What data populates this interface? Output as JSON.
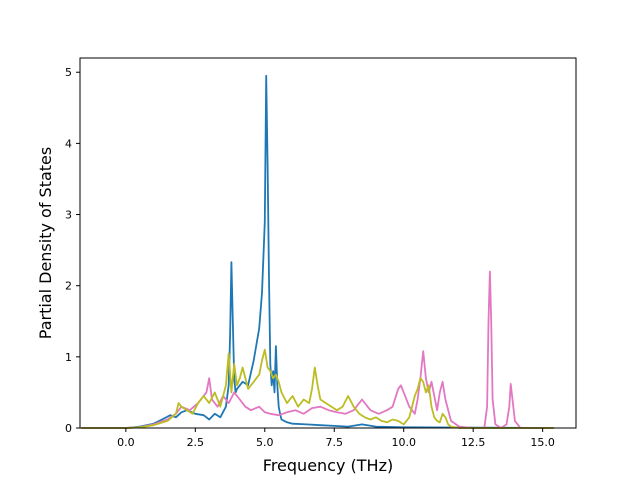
{
  "chart_data": {
    "type": "line",
    "xlabel": "Frequency (THz)",
    "ylabel": "Partial Density of States",
    "xlim": [
      -1.65,
      16.2
    ],
    "ylim": [
      0,
      5.2
    ],
    "xticks": [
      "0.0",
      "2.5",
      "5.0",
      "7.5",
      "10.0",
      "12.5",
      "15.0"
    ],
    "xtick_values": [
      0,
      2.5,
      5,
      7.5,
      10,
      12.5,
      15
    ],
    "yticks": [
      "0",
      "1",
      "2",
      "3",
      "4",
      "5"
    ],
    "ytick_values": [
      0,
      1,
      2,
      3,
      4,
      5
    ],
    "grid": false,
    "series": [
      {
        "color": "#1f77b4",
        "x": [
          -1.6,
          0.0,
          0.5,
          1.0,
          1.3,
          1.6,
          1.8,
          2.0,
          2.2,
          2.5,
          2.8,
          3.0,
          3.2,
          3.4,
          3.6,
          3.7,
          3.75,
          3.8,
          3.85,
          3.9,
          3.95,
          4.0,
          4.2,
          4.4,
          4.6,
          4.8,
          4.9,
          5.0,
          5.05,
          5.1,
          5.15,
          5.2,
          5.25,
          5.3,
          5.35,
          5.4,
          5.45,
          5.5,
          5.55,
          5.6,
          5.8,
          6.0,
          6.5,
          7.0,
          7.5,
          8.0,
          8.5,
          9.0,
          10.0,
          15.4
        ],
        "y": [
          0,
          0,
          0.02,
          0.06,
          0.12,
          0.18,
          0.15,
          0.22,
          0.25,
          0.2,
          0.18,
          0.12,
          0.2,
          0.15,
          0.3,
          0.6,
          1.3,
          2.33,
          1.5,
          0.7,
          0.5,
          0.55,
          0.65,
          0.6,
          0.95,
          1.4,
          1.9,
          2.9,
          4.95,
          3.7,
          2.1,
          0.9,
          0.6,
          0.8,
          0.5,
          1.15,
          0.6,
          0.3,
          0.2,
          0.12,
          0.08,
          0.06,
          0.05,
          0.04,
          0.03,
          0.02,
          0.05,
          0.02,
          0.01,
          0
        ]
      },
      {
        "color": "#e377c2",
        "x": [
          -1.6,
          0.0,
          0.5,
          1.0,
          1.5,
          1.8,
          2.0,
          2.3,
          2.6,
          2.9,
          3.0,
          3.1,
          3.3,
          3.5,
          3.7,
          3.9,
          4.1,
          4.3,
          4.5,
          4.8,
          5.0,
          5.2,
          5.5,
          5.8,
          6.1,
          6.4,
          6.7,
          7.0,
          7.3,
          7.6,
          7.9,
          8.2,
          8.5,
          8.8,
          9.1,
          9.4,
          9.6,
          9.8,
          9.9,
          10.0,
          10.2,
          10.4,
          10.5,
          10.6,
          10.7,
          10.8,
          10.9,
          11.0,
          11.1,
          11.2,
          11.3,
          11.4,
          11.5,
          11.7,
          12.0,
          12.5,
          12.9,
          13.0,
          13.05,
          13.1,
          13.15,
          13.2,
          13.3,
          13.5,
          13.7,
          13.8,
          13.85,
          13.9,
          14.0,
          14.2,
          15.0,
          15.4
        ],
        "y": [
          0,
          0,
          0.01,
          0.05,
          0.12,
          0.2,
          0.3,
          0.25,
          0.35,
          0.5,
          0.7,
          0.4,
          0.3,
          0.45,
          0.35,
          0.5,
          0.4,
          0.3,
          0.25,
          0.3,
          0.22,
          0.2,
          0.18,
          0.22,
          0.25,
          0.2,
          0.28,
          0.3,
          0.25,
          0.22,
          0.2,
          0.25,
          0.4,
          0.25,
          0.2,
          0.25,
          0.3,
          0.55,
          0.6,
          0.5,
          0.3,
          0.2,
          0.4,
          0.7,
          1.08,
          0.7,
          0.5,
          0.65,
          0.45,
          0.25,
          0.5,
          0.65,
          0.4,
          0.1,
          0.02,
          0,
          0,
          0.3,
          1.5,
          2.2,
          1.5,
          0.4,
          0.05,
          0,
          0.05,
          0.3,
          0.62,
          0.45,
          0.1,
          0,
          0,
          0
        ]
      },
      {
        "color": "#bcbd22",
        "x": [
          -1.6,
          0.0,
          0.5,
          1.0,
          1.5,
          1.8,
          1.9,
          2.0,
          2.2,
          2.4,
          2.6,
          2.8,
          3.0,
          3.2,
          3.4,
          3.6,
          3.7,
          3.8,
          3.9,
          4.0,
          4.1,
          4.2,
          4.4,
          4.6,
          4.8,
          4.9,
          5.0,
          5.1,
          5.2,
          5.3,
          5.4,
          5.5,
          5.6,
          5.8,
          6.0,
          6.2,
          6.4,
          6.6,
          6.7,
          6.8,
          6.9,
          7.0,
          7.2,
          7.4,
          7.6,
          7.8,
          8.0,
          8.2,
          8.4,
          8.6,
          8.8,
          9.0,
          9.2,
          9.4,
          9.6,
          9.8,
          10.0,
          10.2,
          10.4,
          10.5,
          10.6,
          10.7,
          10.8,
          10.9,
          11.0,
          11.1,
          11.2,
          11.3,
          11.4,
          11.5,
          11.6,
          11.7,
          12.0,
          15.4
        ],
        "y": [
          0,
          0,
          0.01,
          0.04,
          0.1,
          0.2,
          0.35,
          0.3,
          0.25,
          0.2,
          0.35,
          0.45,
          0.35,
          0.5,
          0.3,
          0.6,
          1.05,
          0.5,
          0.9,
          0.6,
          0.7,
          0.85,
          0.55,
          0.65,
          0.75,
          0.95,
          1.1,
          0.85,
          0.8,
          0.7,
          0.75,
          0.65,
          0.5,
          0.35,
          0.45,
          0.3,
          0.4,
          0.35,
          0.55,
          0.85,
          0.6,
          0.4,
          0.35,
          0.3,
          0.25,
          0.3,
          0.45,
          0.3,
          0.2,
          0.15,
          0.12,
          0.15,
          0.1,
          0.08,
          0.12,
          0.1,
          0.05,
          0.15,
          0.45,
          0.55,
          0.7,
          0.65,
          0.5,
          0.6,
          0.3,
          0.15,
          0.1,
          0.08,
          0.2,
          0.15,
          0.05,
          0.02,
          0,
          0
        ]
      }
    ]
  }
}
